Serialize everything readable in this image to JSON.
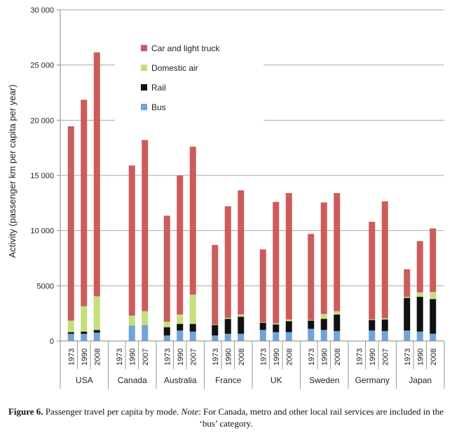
{
  "chart_data": {
    "type": "bar",
    "stacked": true,
    "ylabel": "Activity (passenger km per capita per year)",
    "ylim": [
      0,
      30000
    ],
    "yticks": [
      0,
      5000,
      10000,
      15000,
      20000,
      25000,
      30000
    ],
    "ytick_labels": [
      "0",
      "5000",
      "10 000",
      "15 000",
      "20 000",
      "25 000",
      "30 000"
    ],
    "grid": true,
    "legend_position": "top-left",
    "series": [
      {
        "name": "Bus",
        "color": "#6fa3dc"
      },
      {
        "name": "Rail",
        "color": "#111111"
      },
      {
        "name": "Domestic air",
        "color": "#c5de7c"
      },
      {
        "name": "Car and light truck",
        "color": "#cc5c5a"
      }
    ],
    "legend_order": [
      "Car and light truck",
      "Domestic air",
      "Rail",
      "Bus"
    ],
    "countries": [
      {
        "name": "USA",
        "years": [
          {
            "year": "1973",
            "values": [
              650,
              150,
              1050,
              17600
            ]
          },
          {
            "year": "1990",
            "values": [
              650,
              200,
              2300,
              18700
            ]
          },
          {
            "year": "2008",
            "values": [
              750,
              250,
              3050,
              22100
            ]
          }
        ]
      },
      {
        "name": "Canada",
        "years": [
          {
            "year": "1973",
            "values": null
          },
          {
            "year": "1990",
            "values": [
              1400,
              0,
              900,
              13600
            ]
          },
          {
            "year": "2007",
            "values": [
              1450,
              0,
              1250,
              15500
            ]
          }
        ]
      },
      {
        "name": "Australia",
        "years": [
          {
            "year": "1973",
            "values": [
              500,
              750,
              500,
              9600
            ]
          },
          {
            "year": "1990",
            "values": [
              950,
              600,
              850,
              12600
            ]
          },
          {
            "year": "2007",
            "values": [
              850,
              700,
              2650,
              13400
            ]
          }
        ]
      },
      {
        "name": "France",
        "years": [
          {
            "year": "1973",
            "values": [
              500,
              950,
              50,
              7200
            ]
          },
          {
            "year": "1990",
            "values": [
              650,
              1350,
              100,
              10100
            ]
          },
          {
            "year": "2008",
            "values": [
              650,
              1550,
              200,
              11250
            ]
          }
        ]
      },
      {
        "name": "UK",
        "years": [
          {
            "year": "1973",
            "values": [
              1000,
              650,
              50,
              6600
            ]
          },
          {
            "year": "1990",
            "values": [
              800,
              700,
              100,
              11000
            ]
          },
          {
            "year": "2008",
            "values": [
              800,
              1000,
              150,
              11450
            ]
          }
        ]
      },
      {
        "name": "Sweden",
        "years": [
          {
            "year": "1973",
            "values": [
              1100,
              750,
              50,
              7800
            ]
          },
          {
            "year": "1990",
            "values": [
              1000,
              1000,
              450,
              10100
            ]
          },
          {
            "year": "2008",
            "values": [
              900,
              1500,
              300,
              10700
            ]
          }
        ]
      },
      {
        "name": "Germany",
        "years": [
          {
            "year": "1973",
            "values": null
          },
          {
            "year": "1990",
            "values": [
              950,
              950,
              50,
              8850
            ]
          },
          {
            "year": "2007",
            "values": [
              900,
              1050,
              100,
              10600
            ]
          }
        ]
      },
      {
        "name": "Japan",
        "years": [
          {
            "year": "1973",
            "values": [
              950,
              2950,
              100,
              2500
            ]
          },
          {
            "year": "1990",
            "values": [
              850,
              3150,
              400,
              4650
            ]
          },
          {
            "year": "2008",
            "values": [
              650,
              3150,
              650,
              5750
            ]
          }
        ]
      }
    ]
  },
  "caption": {
    "label": "Figure 6.",
    "text_before": " Passenger travel per capita by mode. ",
    "note_label": "Note",
    "text_after": ": For Canada, metro and other local rail services are included in the ‘bus’ category."
  }
}
